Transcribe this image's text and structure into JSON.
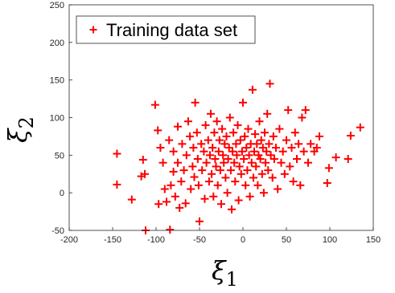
{
  "chart_data": {
    "type": "scatter",
    "title": "",
    "xlabel": "ξ",
    "xlabel_subscript": "1",
    "ylabel": "ξ",
    "ylabel_subscript": "2",
    "xlim": [
      -200,
      150
    ],
    "ylim": [
      -50,
      250
    ],
    "xticks": [
      -200,
      -150,
      -100,
      -50,
      0,
      50,
      100,
      150
    ],
    "yticks": [
      -50,
      0,
      50,
      100,
      150,
      200,
      250
    ],
    "grid": false,
    "legend": {
      "placement": "top-left",
      "entries": [
        "Training data set"
      ]
    },
    "series": [
      {
        "name": "Training data set",
        "marker": "plus",
        "color": "#ff0000",
        "points": [
          [
            -145,
            52
          ],
          [
            -145,
            11
          ],
          [
            -128,
            -9
          ],
          [
            -117,
            22
          ],
          [
            -115,
            44
          ],
          [
            -113,
            25
          ],
          [
            -112,
            -50
          ],
          [
            -101,
            117
          ],
          [
            -98,
            83
          ],
          [
            -97,
            -15
          ],
          [
            -95,
            60
          ],
          [
            -92,
            40
          ],
          [
            -90,
            5
          ],
          [
            -88,
            -12
          ],
          [
            -85,
            70
          ],
          [
            -84,
            -49
          ],
          [
            -83,
            10
          ],
          [
            -80,
            28
          ],
          [
            -80,
            55
          ],
          [
            -78,
            -5
          ],
          [
            -75,
            40
          ],
          [
            -75,
            88
          ],
          [
            -73,
            -20
          ],
          [
            -71,
            15
          ],
          [
            -70,
            65
          ],
          [
            -68,
            30
          ],
          [
            -66,
            -14
          ],
          [
            -65,
            50
          ],
          [
            -63,
            95
          ],
          [
            -61,
            75
          ],
          [
            -60,
            5
          ],
          [
            -58,
            35
          ],
          [
            -57,
            60
          ],
          [
            -56,
            21
          ],
          [
            -55,
            120
          ],
          [
            -53,
            80
          ],
          [
            -52,
            45
          ],
          [
            -51,
            10
          ],
          [
            -50,
            -38
          ],
          [
            -48,
            65
          ],
          [
            -47,
            30
          ],
          [
            -45,
            55
          ],
          [
            -44,
            -8
          ],
          [
            -43,
            90
          ],
          [
            -42,
            40
          ],
          [
            -40,
            70
          ],
          [
            -39,
            15
          ],
          [
            -38,
            50
          ],
          [
            -37,
            105
          ],
          [
            -36,
            25
          ],
          [
            -35,
            60
          ],
          [
            -34,
            -5
          ],
          [
            -33,
            80
          ],
          [
            -32,
            45
          ],
          [
            -31,
            35
          ],
          [
            -30,
            95
          ],
          [
            -29,
            10
          ],
          [
            -28,
            55
          ],
          [
            -27,
            70
          ],
          [
            -26,
            30
          ],
          [
            -25,
            -15
          ],
          [
            -24,
            85
          ],
          [
            -23,
            50
          ],
          [
            -22,
            40
          ],
          [
            -21,
            65
          ],
          [
            -20,
            20
          ],
          [
            -19,
            75
          ],
          [
            -18,
            0
          ],
          [
            -17,
            45
          ],
          [
            -16,
            60
          ],
          [
            -15,
            100
          ],
          [
            -14,
            30
          ],
          [
            -13,
            -22
          ],
          [
            -12,
            55
          ],
          [
            -11,
            80
          ],
          [
            -10,
            40
          ],
          [
            -9,
            15
          ],
          [
            -8,
            65
          ],
          [
            -7,
            50
          ],
          [
            -6,
            90
          ],
          [
            -5,
            -10
          ],
          [
            -4,
            35
          ],
          [
            -3,
            70
          ],
          [
            -2,
            25
          ],
          [
            -1,
            55
          ],
          [
            0,
            120
          ],
          [
            1,
            45
          ],
          [
            2,
            75
          ],
          [
            3,
            10
          ],
          [
            4,
            60
          ],
          [
            5,
            30
          ],
          [
            6,
            85
          ],
          [
            7,
            50
          ],
          [
            8,
            -5
          ],
          [
            9,
            65
          ],
          [
            10,
            40
          ],
          [
            11,
            137
          ],
          [
            12,
            20
          ],
          [
            13,
            55
          ],
          [
            14,
            78
          ],
          [
            15,
            35
          ],
          [
            16,
            65
          ],
          [
            17,
            10
          ],
          [
            18,
            50
          ],
          [
            19,
            95
          ],
          [
            20,
            45
          ],
          [
            21,
            70
          ],
          [
            22,
            25
          ],
          [
            23,
            60
          ],
          [
            24,
            0
          ],
          [
            25,
            80
          ],
          [
            26,
            40
          ],
          [
            27,
            55
          ],
          [
            28,
            105
          ],
          [
            29,
            30
          ],
          [
            30,
            65
          ],
          [
            31,
            145
          ],
          [
            32,
            50
          ],
          [
            34,
            20
          ],
          [
            35,
            75
          ],
          [
            36,
            45
          ],
          [
            38,
            60
          ],
          [
            40,
            5
          ],
          [
            42,
            85
          ],
          [
            44,
            40
          ],
          [
            46,
            55
          ],
          [
            48,
            25
          ],
          [
            50,
            70
          ],
          [
            52,
            110
          ],
          [
            54,
            35
          ],
          [
            56,
            60
          ],
          [
            58,
            15
          ],
          [
            60,
            80
          ],
          [
            62,
            45
          ],
          [
            64,
            65
          ],
          [
            66,
            10
          ],
          [
            68,
            100
          ],
          [
            70,
            55
          ],
          [
            72,
            110
          ],
          [
            75,
            40
          ],
          [
            78,
            65
          ],
          [
            82,
            55
          ],
          [
            85,
            60
          ],
          [
            88,
            75
          ],
          [
            97,
            13
          ],
          [
            99,
            33
          ],
          [
            107,
            47
          ],
          [
            121,
            45
          ],
          [
            124,
            76
          ],
          [
            135,
            87
          ]
        ]
      }
    ]
  }
}
